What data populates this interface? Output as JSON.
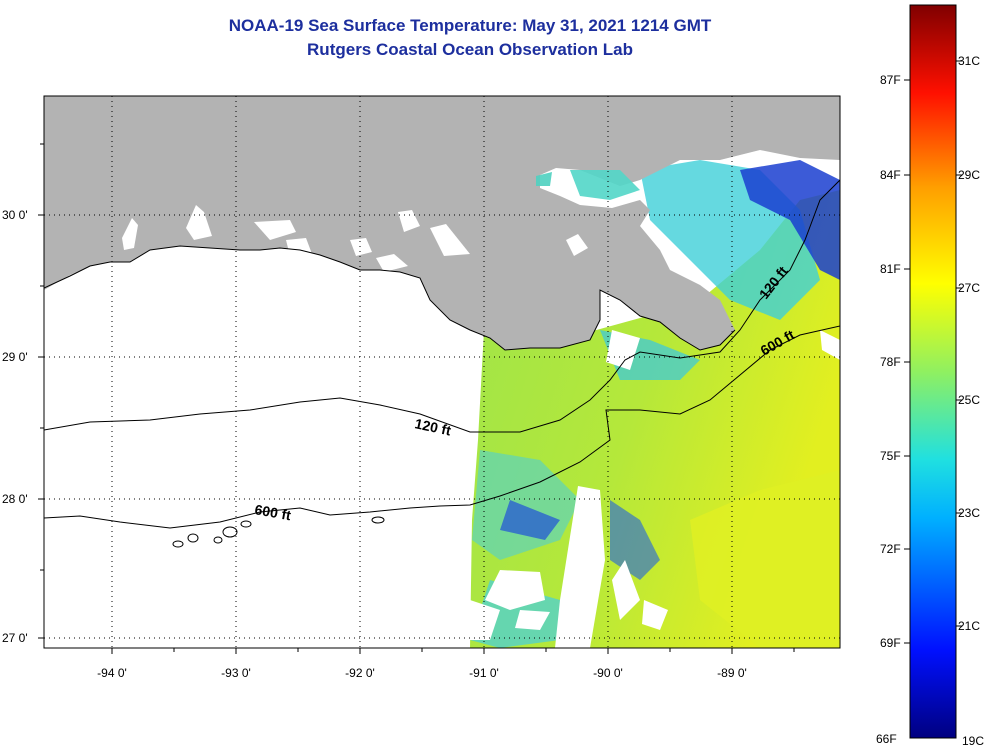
{
  "header": {
    "title": "NOAA-19 Sea Surface Temperature:  May 31, 2021 1214 GMT",
    "subtitle": "Rutgers Coastal Ocean Observation Lab"
  },
  "axes": {
    "x_ticks": [
      "-94 0'",
      "-93 0'",
      "-92 0'",
      "-91 0'",
      "-90 0'",
      "-89 0'"
    ],
    "y_ticks": [
      "30 0'",
      "29 0'",
      "28 0'",
      "27 0'"
    ]
  },
  "contours": {
    "shallow_label": "120 ft",
    "deep_label": "600 ft"
  },
  "colorbar": {
    "f_labels": [
      "87F",
      "84F",
      "81F",
      "78F",
      "75F",
      "72F",
      "69F",
      "66F"
    ],
    "c_labels": [
      "31C",
      "29C",
      "27C",
      "25C",
      "23C",
      "21C",
      "19C"
    ]
  },
  "colors": {
    "land": "#b3b3b3",
    "title": "#1d2f9e",
    "sst_main": "#a9e33c",
    "sst_warm": "#e6f01a",
    "sst_cool": "#2fc7e0",
    "sst_cold": "#1236c8"
  }
}
